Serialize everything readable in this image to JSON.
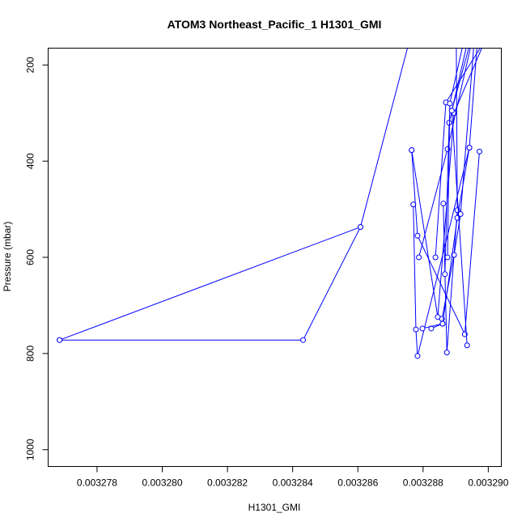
{
  "chart_data": {
    "type": "line",
    "title": "ATOM3 Northeast_Pacific_1 H1301_GMI",
    "xlabel": "H1301_GMI",
    "ylabel": "Pressure (mbar)",
    "xlim": [
      0.0032765,
      0.0032904
    ],
    "ylim": [
      1035,
      165
    ],
    "y_reversed": true,
    "grid": false,
    "marker": "open-circle",
    "series_color": "#0000ff",
    "x_ticks": [
      {
        "value": 0.003278,
        "label": "0.003278"
      },
      {
        "value": 0.00328,
        "label": "0.003280"
      },
      {
        "value": 0.003282,
        "label": "0.003282"
      },
      {
        "value": 0.003284,
        "label": "0.003284"
      },
      {
        "value": 0.003286,
        "label": "0.003286"
      },
      {
        "value": 0.003288,
        "label": "0.003288"
      },
      {
        "value": 0.00329,
        "label": "0.003290"
      }
    ],
    "y_ticks": [
      {
        "value": 200,
        "label": "200"
      },
      {
        "value": 400,
        "label": "400"
      },
      {
        "value": 600,
        "label": "600"
      },
      {
        "value": 800,
        "label": "800"
      },
      {
        "value": 1000,
        "label": "1000"
      }
    ],
    "series": [
      {
        "points": [
          {
            "x": 0.00327685,
            "y": 772
          },
          {
            "x": 0.00328432,
            "y": 772
          },
          {
            "x": 0.00328608,
            "y": 537
          },
          {
            "x": 0.00328752,
            "y": 165
          }
        ]
      },
      {
        "points": [
          {
            "x": 0.00328608,
            "y": 537
          },
          {
            "x": 0.00327685,
            "y": 772
          }
        ]
      },
      {
        "points": [
          {
            "x": 0.00328765,
            "y": 377
          },
          {
            "x": 0.00328783,
            "y": 555
          },
          {
            "x": 0.00328928,
            "y": 760
          },
          {
            "x": 0.00328973,
            "y": 380
          }
        ]
      },
      {
        "points": [
          {
            "x": 0.0032877,
            "y": 490
          },
          {
            "x": 0.00328778,
            "y": 750
          },
          {
            "x": 0.00328783,
            "y": 805
          },
          {
            "x": 0.00328942,
            "y": 372
          }
        ]
      },
      {
        "points": [
          {
            "x": 0.00328765,
            "y": 377
          },
          {
            "x": 0.00328845,
            "y": 724
          },
          {
            "x": 0.00328895,
            "y": 300
          },
          {
            "x": 0.0032898,
            "y": 165
          }
        ]
      },
      {
        "points": [
          {
            "x": 0.00328787,
            "y": 600
          },
          {
            "x": 0.00328875,
            "y": 375
          },
          {
            "x": 0.00328945,
            "y": 165
          }
        ]
      },
      {
        "points": [
          {
            "x": 0.00328838,
            "y": 600
          },
          {
            "x": 0.0032887,
            "y": 278
          },
          {
            "x": 0.00328975,
            "y": 165
          }
        ]
      },
      {
        "points": [
          {
            "x": 0.00328862,
            "y": 488
          },
          {
            "x": 0.00328873,
            "y": 798
          },
          {
            "x": 0.00328905,
            "y": 502
          },
          {
            "x": 0.00328902,
            "y": 165
          }
        ]
      },
      {
        "points": [
          {
            "x": 0.00328867,
            "y": 635
          },
          {
            "x": 0.0032888,
            "y": 320
          },
          {
            "x": 0.00328932,
            "y": 165
          }
        ]
      },
      {
        "points": [
          {
            "x": 0.00328858,
            "y": 728
          },
          {
            "x": 0.00328895,
            "y": 595
          },
          {
            "x": 0.00328915,
            "y": 510
          },
          {
            "x": 0.00328955,
            "y": 165
          }
        ]
      },
      {
        "points": [
          {
            "x": 0.00328825,
            "y": 748
          },
          {
            "x": 0.0032886,
            "y": 738
          },
          {
            "x": 0.00328905,
            "y": 518
          },
          {
            "x": 0.00328942,
            "y": 372
          },
          {
            "x": 0.00328965,
            "y": 165
          }
        ]
      },
      {
        "points": [
          {
            "x": 0.00328798,
            "y": 748
          },
          {
            "x": 0.0032886,
            "y": 738
          }
        ]
      },
      {
        "points": [
          {
            "x": 0.00328875,
            "y": 600
          },
          {
            "x": 0.00328882,
            "y": 280
          },
          {
            "x": 0.0032892,
            "y": 165
          }
        ]
      },
      {
        "points": [
          {
            "x": 0.00328935,
            "y": 783
          },
          {
            "x": 0.00328888,
            "y": 295
          },
          {
            "x": 0.0032894,
            "y": 165
          }
        ]
      }
    ]
  }
}
